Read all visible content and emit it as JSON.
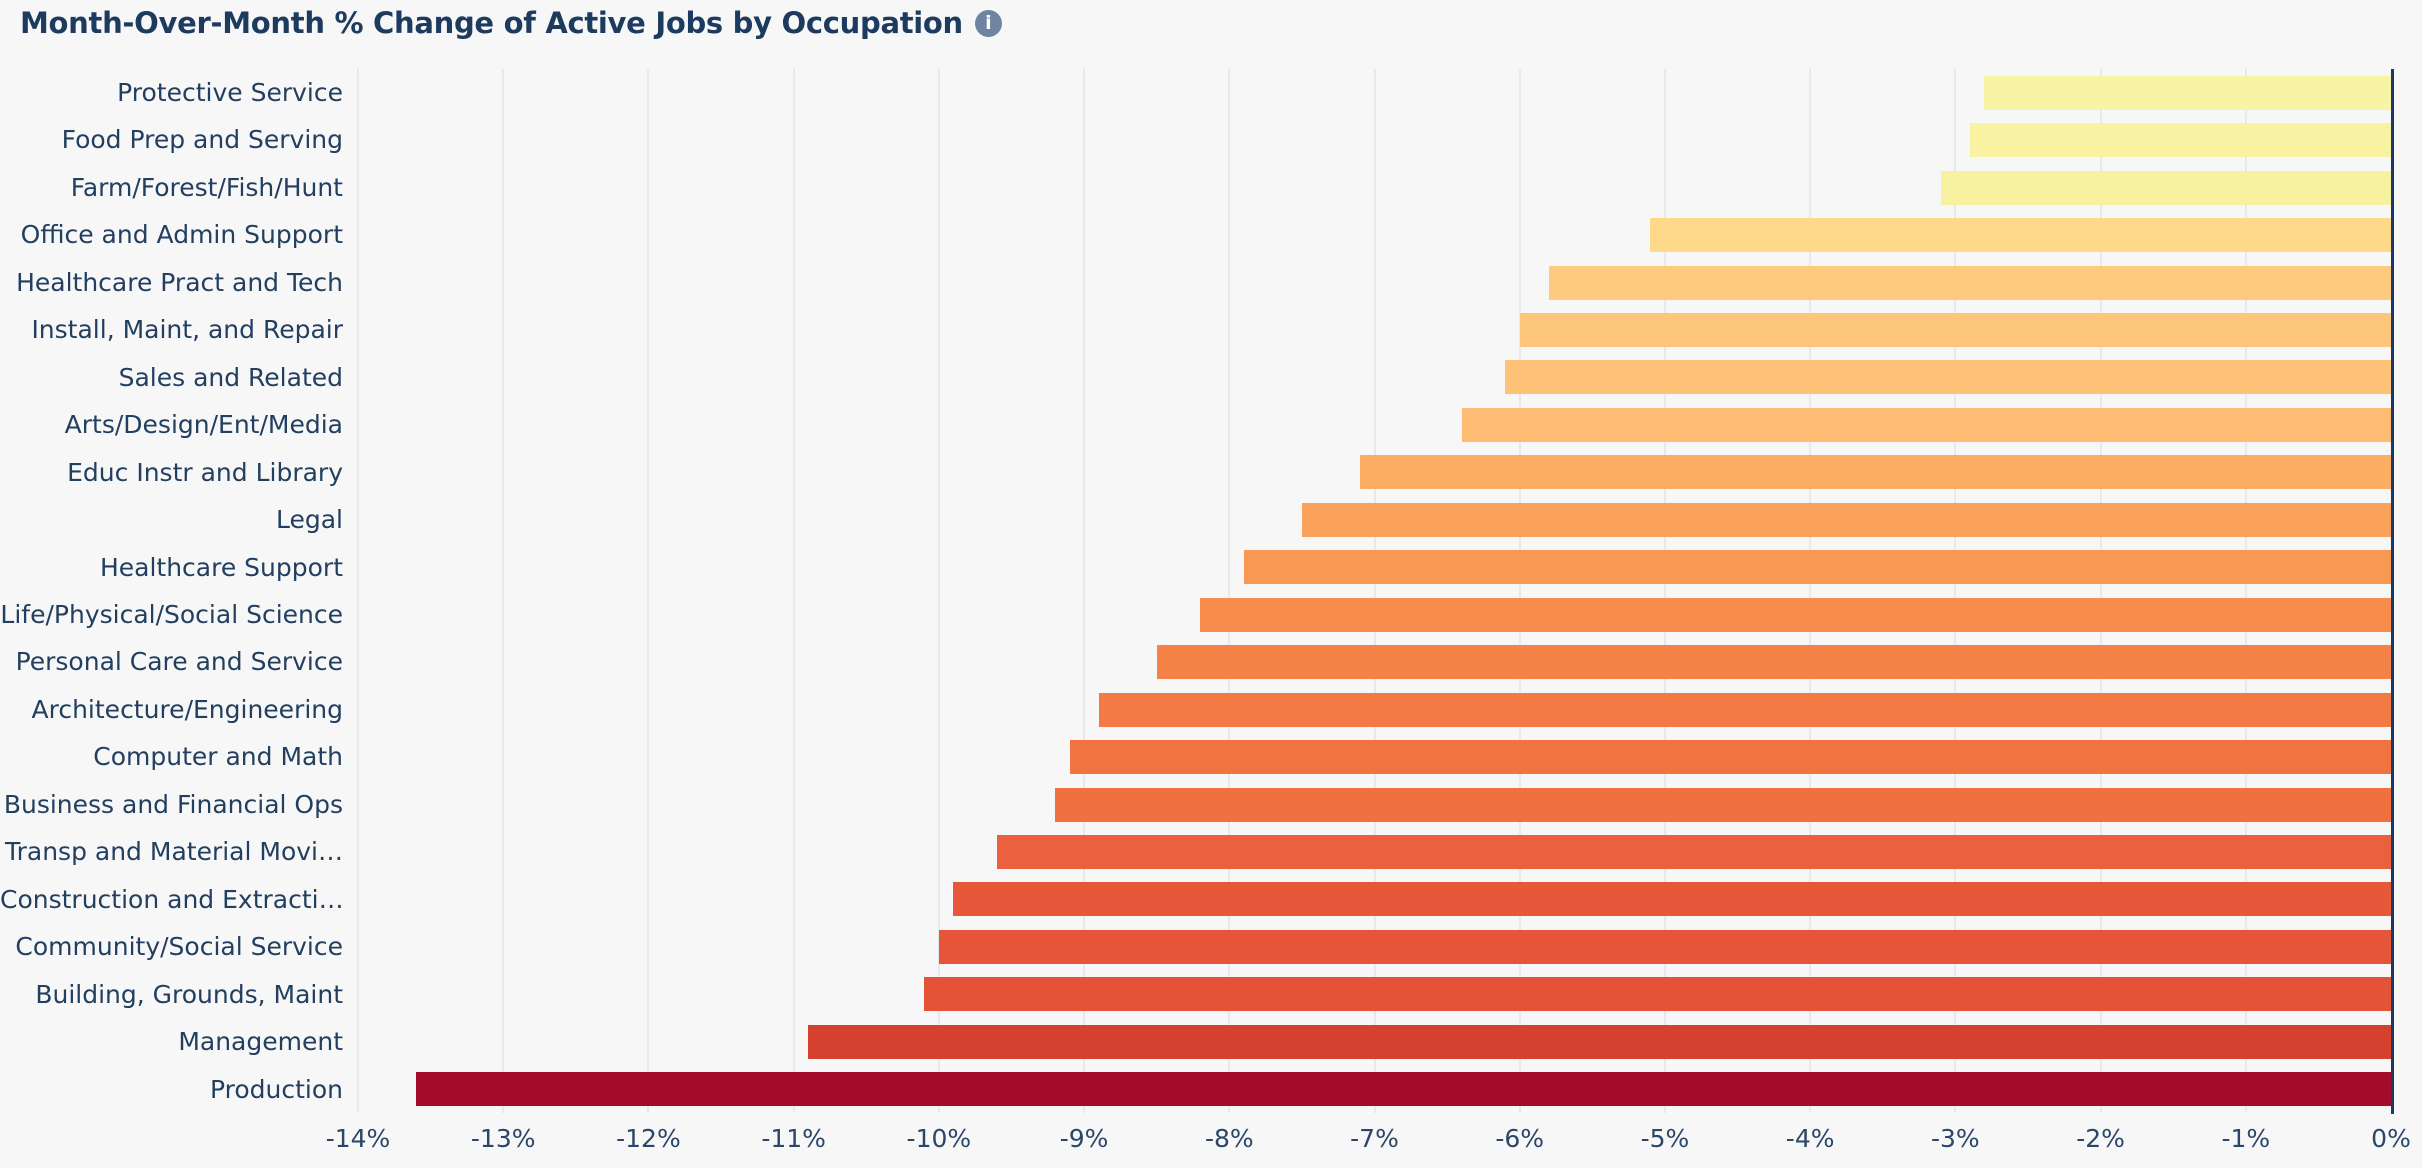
{
  "header": {
    "title": "Month-Over-Month % Change of Active Jobs by Occupation",
    "info_icon_glyph": "i"
  },
  "colors": {
    "background": "#f7f7f8",
    "title_text": "#1d3a5f",
    "category_label_text": "#223f60",
    "tick_label_text": "#2a4668",
    "axis_zero_line": "#1b3a5e",
    "gridline": "#e9e9ec",
    "info_icon_bg": "#6f84a1"
  },
  "chart_data": {
    "type": "bar",
    "orientation": "horizontal",
    "title": "Month-Over-Month % Change of Active Jobs by Occupation",
    "unit": "%",
    "grid": true,
    "categories": [
      "Protective Service",
      "Food Prep and Serving",
      "Farm/Forest/Fish/Hunt",
      "Office and Admin Support",
      "Healthcare Pract and Tech",
      "Install, Maint, and Repair",
      "Sales and Related",
      "Arts/Design/Ent/Media",
      "Educ Instr and Library",
      "Legal",
      "Healthcare Support",
      "Life/Physical/Social Science",
      "Personal Care and Service",
      "Architecture/Engineering",
      "Computer and Math",
      "Business and Financial Ops",
      "Transp and Material Movi…",
      "Construction and Extracti…",
      "Community/Social Service",
      "Building, Grounds, Maint",
      "Management",
      "Production"
    ],
    "values": [
      -2.8,
      -2.9,
      -3.1,
      -5.1,
      -5.8,
      -6.0,
      -6.1,
      -6.4,
      -7.1,
      -7.5,
      -7.9,
      -8.2,
      -8.5,
      -8.9,
      -9.1,
      -9.2,
      -9.6,
      -9.9,
      -10.0,
      -10.1,
      -10.9,
      -13.6
    ],
    "bar_colors": [
      "#f8f4a6",
      "#f8f3a3",
      "#f7f2a0",
      "#fed98a",
      "#fdca7e",
      "#fdc67b",
      "#fdc278",
      "#fdbb73",
      "#fcac63",
      "#faa25b",
      "#f89853",
      "#f78c4c",
      "#f58348",
      "#f37a44",
      "#f17340",
      "#f0713f",
      "#eb603e",
      "#e7573a",
      "#e65539",
      "#e45337",
      "#d6402f",
      "#a30b2b"
    ],
    "x_axis": {
      "min": -14,
      "max": 0,
      "tick_values": [
        -14,
        -13,
        -12,
        -11,
        -10,
        -9,
        -8,
        -7,
        -6,
        -5,
        -4,
        -3,
        -2,
        -1,
        0
      ],
      "tick_labels": [
        "-14%",
        "-13%",
        "-12%",
        "-11%",
        "-10%",
        "-9%",
        "-8%",
        "-7%",
        "-6%",
        "-5%",
        "-4%",
        "-3%",
        "-2%",
        "-1%",
        "0%"
      ]
    },
    "legend": null
  }
}
